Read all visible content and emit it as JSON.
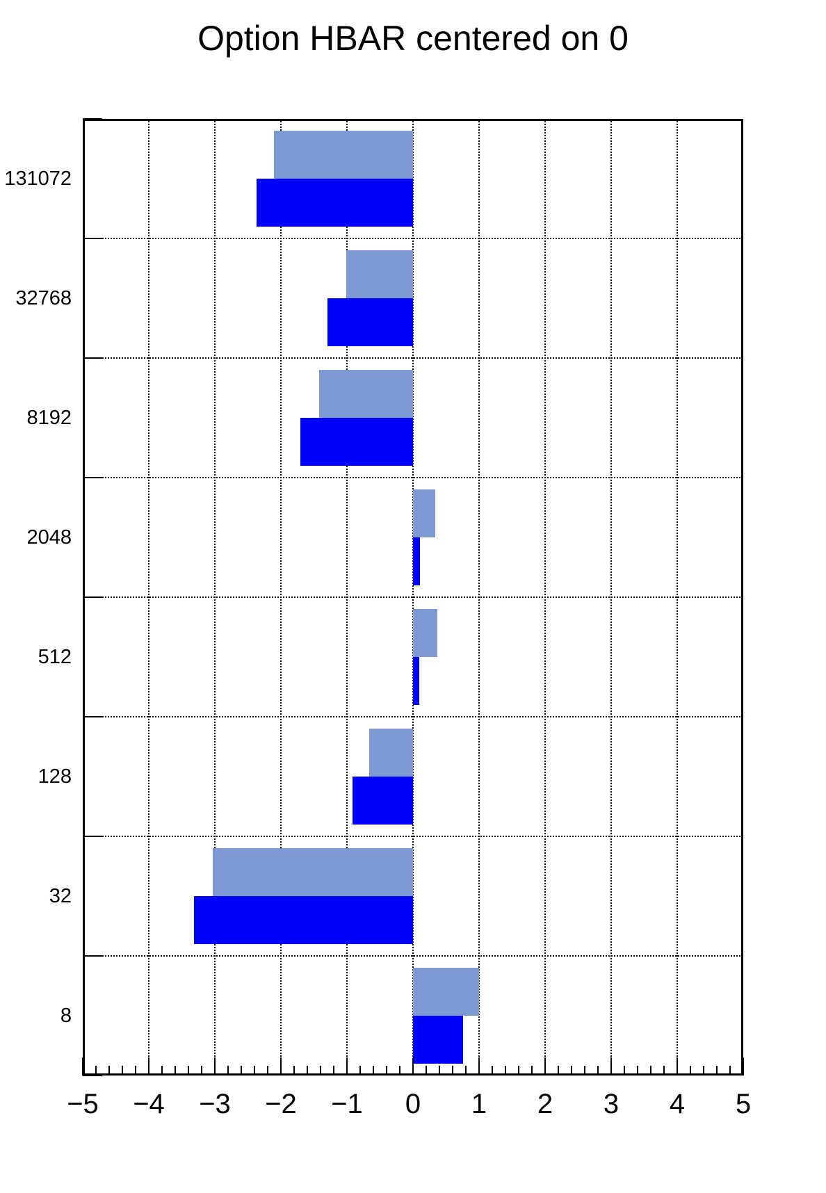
{
  "title": "Option HBAR centered on 0",
  "chart_data": {
    "type": "bar",
    "orientation": "horizontal",
    "title": "Option HBAR centered on 0",
    "centered_on": 0,
    "categories_top_to_bottom": [
      "131072",
      "32768",
      "8192",
      "2048",
      "512",
      "128",
      "32",
      "8"
    ],
    "series": [
      {
        "name": "light-blue-bars",
        "color": "#7d99d1",
        "values_top_to_bottom": [
          -2.11,
          -1.01,
          -1.42,
          0.34,
          0.37,
          -0.66,
          -3.03,
          1.0
        ]
      },
      {
        "name": "blue-bars",
        "color": "#0000ff",
        "values_top_to_bottom": [
          -2.37,
          -1.3,
          -1.71,
          0.1,
          0.09,
          -0.92,
          -3.32,
          0.76
        ]
      }
    ],
    "xlim": [
      -5,
      5
    ],
    "x_tick_labels": [
      "−5",
      "−4",
      "−3",
      "−2",
      "−1",
      "0",
      "1",
      "2",
      "3",
      "4",
      "5"
    ],
    "x_major_step": 1,
    "x_minor_divisions_per_major": 5,
    "grid_style": "dotted",
    "grid_on": true,
    "legend": "none",
    "frame_color": "#000000",
    "background_color": "#ffffff",
    "bar_width_fraction_of_bin": 0.4,
    "series_offsets_in_bin": [
      0.1,
      0.5
    ]
  }
}
